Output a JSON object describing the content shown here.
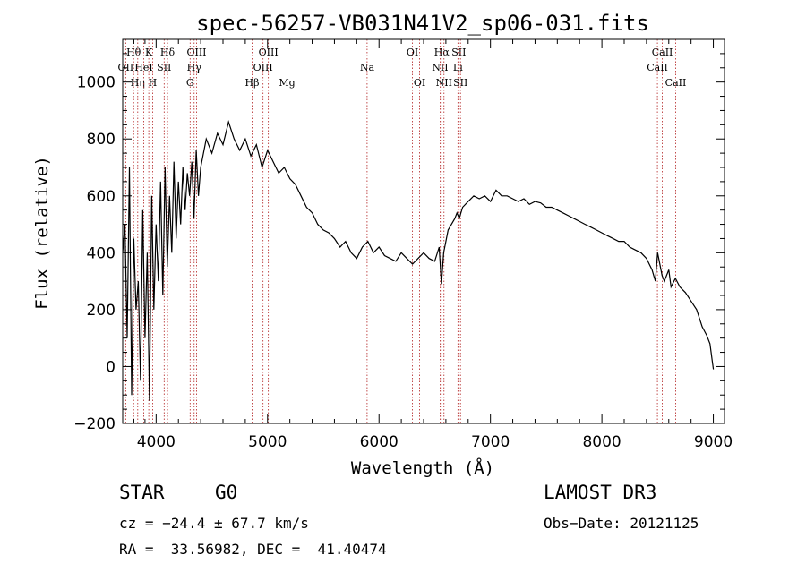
{
  "chart_data": {
    "type": "line",
    "title": "spec-56257-VB031N41V2_sp06-031.fits",
    "xlabel": "Wavelength (Å)",
    "ylabel": "Flux (relative)",
    "xlim": [
      3700,
      9100
    ],
    "ylim": [
      -200,
      1150
    ],
    "xticks": [
      4000,
      5000,
      6000,
      7000,
      8000,
      9000
    ],
    "yticks": [
      -200,
      0,
      200,
      400,
      600,
      800,
      1000
    ],
    "series": [
      {
        "name": "flux",
        "x": [
          3700,
          3720,
          3740,
          3760,
          3780,
          3800,
          3820,
          3840,
          3860,
          3880,
          3900,
          3920,
          3940,
          3960,
          3980,
          4000,
          4020,
          4040,
          4060,
          4080,
          4100,
          4120,
          4140,
          4160,
          4180,
          4200,
          4220,
          4240,
          4260,
          4280,
          4300,
          4320,
          4340,
          4360,
          4380,
          4400,
          4450,
          4500,
          4550,
          4600,
          4650,
          4700,
          4750,
          4800,
          4850,
          4900,
          4950,
          5000,
          5050,
          5100,
          5150,
          5200,
          5250,
          5300,
          5350,
          5400,
          5450,
          5500,
          5550,
          5600,
          5650,
          5700,
          5750,
          5800,
          5850,
          5900,
          5950,
          6000,
          6050,
          6100,
          6150,
          6200,
          6250,
          6300,
          6350,
          6400,
          6450,
          6500,
          6540,
          6560,
          6580,
          6600,
          6620,
          6650,
          6680,
          6700,
          6720,
          6750,
          6800,
          6850,
          6900,
          6950,
          7000,
          7050,
          7100,
          7150,
          7200,
          7250,
          7300,
          7350,
          7400,
          7450,
          7500,
          7550,
          7600,
          7650,
          7700,
          7750,
          7800,
          7850,
          7900,
          7950,
          8000,
          8050,
          8100,
          8150,
          8200,
          8250,
          8300,
          8350,
          8400,
          8450,
          8480,
          8500,
          8540,
          8560,
          8600,
          8620,
          8660,
          8700,
          8750,
          8800,
          8850,
          8900,
          8940,
          8970,
          8990,
          9000
        ],
        "y": [
          400,
          500,
          100,
          700,
          -100,
          450,
          200,
          300,
          -50,
          550,
          100,
          400,
          -120,
          600,
          200,
          500,
          300,
          650,
          250,
          700,
          350,
          600,
          400,
          720,
          450,
          650,
          500,
          700,
          550,
          680,
          600,
          720,
          520,
          760,
          600,
          700,
          800,
          750,
          820,
          780,
          860,
          800,
          760,
          800,
          740,
          780,
          700,
          760,
          720,
          680,
          700,
          660,
          640,
          600,
          560,
          540,
          500,
          480,
          470,
          450,
          420,
          440,
          400,
          380,
          420,
          440,
          400,
          420,
          390,
          380,
          370,
          400,
          380,
          360,
          380,
          400,
          380,
          370,
          420,
          290,
          400,
          440,
          480,
          500,
          520,
          540,
          520,
          560,
          580,
          600,
          590,
          600,
          580,
          620,
          600,
          600,
          590,
          580,
          590,
          570,
          580,
          575,
          560,
          560,
          550,
          540,
          530,
          520,
          510,
          500,
          490,
          480,
          470,
          460,
          450,
          440,
          440,
          420,
          410,
          400,
          380,
          340,
          300,
          400,
          320,
          300,
          340,
          280,
          310,
          280,
          260,
          230,
          200,
          140,
          110,
          80,
          20,
          -10
        ]
      }
    ],
    "line_labels": [
      {
        "label": "Hθ",
        "x": 3798,
        "row": 1
      },
      {
        "label": "OII",
        "x": 3727,
        "row": 2
      },
      {
        "label": "Hη",
        "x": 3835,
        "row": 3
      },
      {
        "label": "HeI",
        "x": 3889,
        "row": 2
      },
      {
        "label": "K",
        "x": 3934,
        "row": 1
      },
      {
        "label": "H",
        "x": 3969,
        "row": 3
      },
      {
        "label": "SII",
        "x": 4072,
        "row": 2
      },
      {
        "label": "Hδ",
        "x": 4102,
        "row": 1
      },
      {
        "label": "OIII",
        "x": 4363,
        "row": 1
      },
      {
        "label": "Hγ",
        "x": 4341,
        "row": 2
      },
      {
        "label": "G",
        "x": 4305,
        "row": 3
      },
      {
        "label": "Hβ",
        "x": 4861,
        "row": 3
      },
      {
        "label": "OIII",
        "x": 5007,
        "row": 1
      },
      {
        "label": "OIII",
        "x": 4959,
        "row": 2
      },
      {
        "label": "Mg",
        "x": 5175,
        "row": 3
      },
      {
        "label": "Na",
        "x": 5893,
        "row": 2
      },
      {
        "label": "OI",
        "x": 6300,
        "row": 1
      },
      {
        "label": "OI",
        "x": 6364,
        "row": 3
      },
      {
        "label": "Hα",
        "x": 6563,
        "row": 1
      },
      {
        "label": "NII",
        "x": 6548,
        "row": 2
      },
      {
        "label": "NII",
        "x": 6583,
        "row": 3
      },
      {
        "label": "SII",
        "x": 6716,
        "row": 1
      },
      {
        "label": "Li",
        "x": 6708,
        "row": 2
      },
      {
        "label": "SII",
        "x": 6731,
        "row": 3
      },
      {
        "label": "CaII",
        "x": 8542,
        "row": 1
      },
      {
        "label": "CaII",
        "x": 8498,
        "row": 2
      },
      {
        "label": "CaII",
        "x": 8662,
        "row": 3
      }
    ]
  },
  "info": {
    "class_label": "STAR",
    "subclass": "G0",
    "survey": "LAMOST DR3",
    "cz_text": "cz = −24.4 ± 67.7 km/s",
    "obs_date_text": "Obs−Date: 20121125",
    "coords_text": "RA =  33.56982, DEC =  41.40474"
  }
}
